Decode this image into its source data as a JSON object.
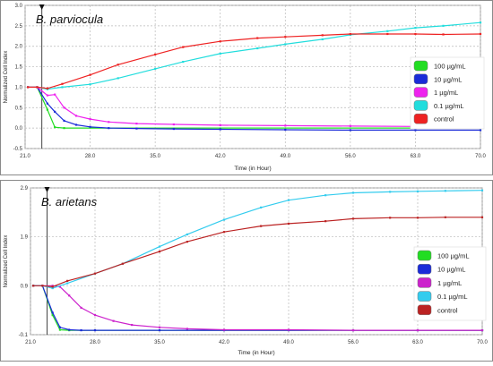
{
  "chart_data": [
    {
      "type": "line",
      "annotation": "B. parviocula",
      "xlabel": "Time (in Hour)",
      "ylabel": "Normalized Cell Index",
      "xlim": [
        21.0,
        70.0
      ],
      "ylim": [
        -0.5,
        3.0
      ],
      "x_ticks": [
        "21.0",
        "28.0",
        "35.0",
        "42.0",
        "49.0",
        "56.0",
        "63.0",
        "70.0"
      ],
      "y_ticks": [
        "-0.5",
        "0.0",
        "0.5",
        "1.0",
        "1.5",
        "2.0",
        "2.5",
        "3.0"
      ],
      "grid": true,
      "legend_position": "right",
      "colors": [
        "#22dd22",
        "#1a2bd8",
        "#ee22ee",
        "#22dddd",
        "#ee2222"
      ],
      "series": [
        {
          "name": "100 µg/mL",
          "color": "#22dd22",
          "x": [
            21.3,
            22.3,
            23.4,
            24.2,
            25.2,
            70.0
          ],
          "y": [
            1.0,
            1.0,
            0.45,
            0.02,
            0.0,
            0.0
          ]
        },
        {
          "name": "10 µg/mL",
          "color": "#1a2bd8",
          "x": [
            21.3,
            22.3,
            23.4,
            24.2,
            25.2,
            26.5,
            28.0,
            30.0,
            33.0,
            37.0,
            42.0,
            49.0,
            56.0,
            63.0,
            70.0
          ],
          "y": [
            1.0,
            1.0,
            0.6,
            0.4,
            0.18,
            0.08,
            0.03,
            0.0,
            -0.01,
            -0.02,
            -0.03,
            -0.04,
            -0.05,
            -0.05,
            -0.05
          ]
        },
        {
          "name": "1 µg/mL",
          "color": "#ee22ee",
          "x": [
            21.3,
            22.3,
            23.4,
            24.2,
            25.2,
            26.5,
            28.0,
            30.0,
            33.0,
            37.0,
            42.0,
            49.0,
            56.0,
            63.0,
            70.0
          ],
          "y": [
            1.0,
            1.0,
            0.8,
            0.82,
            0.5,
            0.3,
            0.22,
            0.15,
            0.11,
            0.09,
            0.07,
            0.06,
            0.05,
            0.04,
            0.04
          ]
        },
        {
          "name": "0.1 µg/mL",
          "color": "#22dddd",
          "x": [
            21.3,
            22.3,
            23.4,
            25.0,
            28.0,
            31.0,
            35.0,
            38.0,
            42.0,
            46.0,
            49.0,
            53.0,
            56.0,
            60.0,
            63.0,
            66.0,
            70.0
          ],
          "y": [
            1.0,
            1.0,
            0.95,
            1.0,
            1.07,
            1.22,
            1.45,
            1.62,
            1.82,
            1.95,
            2.05,
            2.17,
            2.28,
            2.37,
            2.45,
            2.5,
            2.58
          ]
        },
        {
          "name": "control",
          "color": "#ee2222",
          "x": [
            21.3,
            22.3,
            23.4,
            25.0,
            28.0,
            31.0,
            35.0,
            38.0,
            42.0,
            46.0,
            49.0,
            53.0,
            56.0,
            60.0,
            63.0,
            66.0,
            70.0
          ],
          "y": [
            1.0,
            1.0,
            0.97,
            1.08,
            1.3,
            1.55,
            1.8,
            1.98,
            2.12,
            2.2,
            2.23,
            2.27,
            2.3,
            2.3,
            2.3,
            2.29,
            2.3
          ]
        }
      ]
    },
    {
      "type": "line",
      "annotation": "B. arietans",
      "xlabel": "Time (in Hour)",
      "ylabel": "Normalized Cell Index",
      "xlim": [
        21.0,
        70.0
      ],
      "ylim": [
        -0.1,
        2.9
      ],
      "x_ticks": [
        "21.0",
        "28.0",
        "35.0",
        "42.0",
        "49.0",
        "56.0",
        "63.0",
        "70.0"
      ],
      "y_ticks": [
        "-0.1",
        "0.9",
        "1.9",
        "2.9"
      ],
      "grid": true,
      "legend_position": "right",
      "colors": [
        "#22dd22",
        "#1a2bd8",
        "#cc22cc",
        "#33ccee",
        "#bb2222"
      ],
      "series": [
        {
          "name": "100 µg/mL",
          "color": "#22dd22",
          "x": [
            21.3,
            22.3,
            23.4,
            24.2,
            25.2,
            70.0
          ],
          "y": [
            0.9,
            0.9,
            0.3,
            0.0,
            -0.01,
            -0.01
          ]
        },
        {
          "name": "10 µg/mL",
          "color": "#1a2bd8",
          "x": [
            21.3,
            22.3,
            23.4,
            24.2,
            25.2,
            26.5,
            28.0,
            35.0,
            42.0,
            49.0,
            56.0,
            63.0,
            70.0
          ],
          "y": [
            0.9,
            0.9,
            0.35,
            0.05,
            0.0,
            -0.01,
            -0.01,
            -0.01,
            -0.01,
            -0.01,
            -0.01,
            -0.01,
            -0.01
          ]
        },
        {
          "name": "1 µg/mL",
          "color": "#cc22cc",
          "x": [
            21.3,
            22.3,
            23.4,
            24.2,
            25.2,
            26.5,
            28.0,
            30.0,
            32.0,
            35.0,
            38.0,
            42.0,
            49.0,
            56.0,
            63.0,
            70.0
          ],
          "y": [
            0.9,
            0.9,
            0.9,
            0.88,
            0.7,
            0.45,
            0.3,
            0.18,
            0.1,
            0.05,
            0.02,
            0.0,
            0.0,
            -0.01,
            -0.01,
            -0.01
          ]
        },
        {
          "name": "0.1 µg/mL",
          "color": "#33ccee",
          "x": [
            21.3,
            22.3,
            23.4,
            25.0,
            28.0,
            31.0,
            35.0,
            38.0,
            42.0,
            46.0,
            49.0,
            53.0,
            56.0,
            60.0,
            63.0,
            66.0,
            70.0
          ],
          "y": [
            0.9,
            0.9,
            0.85,
            0.95,
            1.15,
            1.35,
            1.7,
            1.95,
            2.25,
            2.5,
            2.65,
            2.75,
            2.8,
            2.82,
            2.83,
            2.84,
            2.85
          ]
        },
        {
          "name": "control",
          "color": "#bb2222",
          "x": [
            21.3,
            22.3,
            23.4,
            25.0,
            28.0,
            31.0,
            35.0,
            38.0,
            42.0,
            46.0,
            49.0,
            53.0,
            56.0,
            60.0,
            63.0,
            66.0,
            70.0
          ],
          "y": [
            0.9,
            0.9,
            0.88,
            1.0,
            1.15,
            1.35,
            1.6,
            1.8,
            2.0,
            2.12,
            2.17,
            2.22,
            2.27,
            2.29,
            2.29,
            2.3,
            2.3
          ]
        }
      ]
    }
  ]
}
